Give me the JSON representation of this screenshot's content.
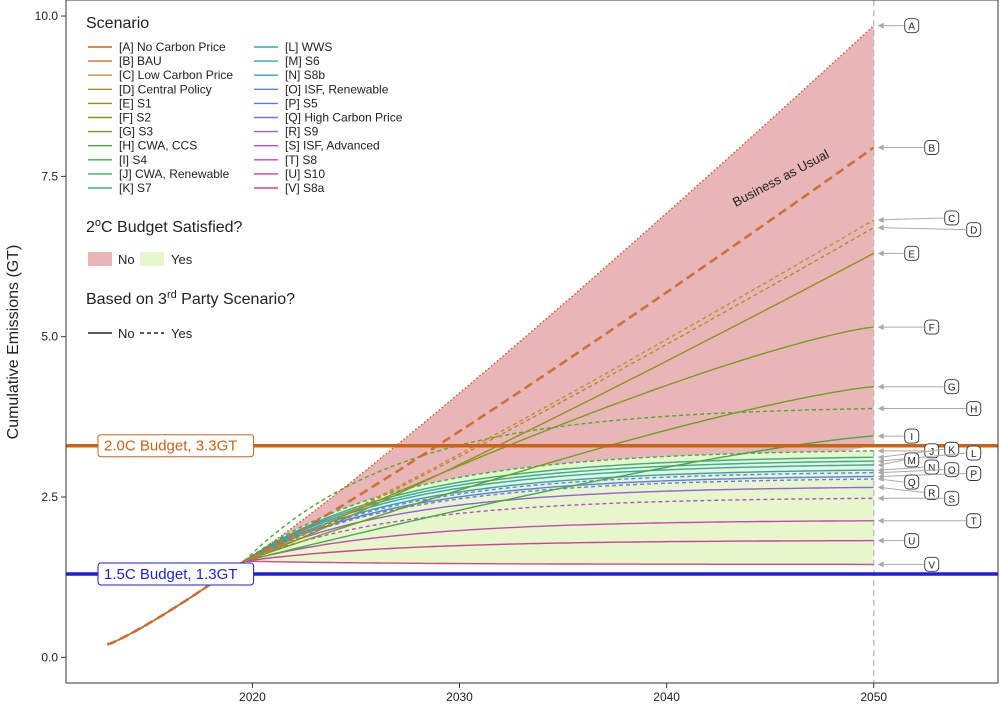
{
  "chart_data": {
    "type": "line",
    "ylabel": "Cumulative Emissions (GT)",
    "xlabel": "",
    "xlim": [
      2011,
      2056
    ],
    "ylim": [
      -0.4,
      10.25
    ],
    "x_ticks": [
      2020,
      2030,
      2040,
      2050
    ],
    "y_ticks": [
      0.0,
      2.5,
      5.0,
      7.5,
      10.0
    ],
    "y_tick_labels": [
      "0.0",
      "2.5",
      "5.0",
      "7.5",
      "10.0"
    ],
    "start": {
      "x": 2013,
      "y": 0.2
    },
    "converge": {
      "x": 2019.6,
      "y": 1.5
    },
    "vline_x": 2050,
    "budgets": [
      {
        "label": "2.0C Budget, 3.3GT",
        "y": 3.3,
        "color": "#c8641a"
      },
      {
        "label": "1.5C Budget, 1.3GT",
        "y": 1.3,
        "color": "#1f1fd6"
      }
    ],
    "bau_annotation": "Business as Usual",
    "fill_colors": {
      "no": "#e8b6b6",
      "yes": "#e6f7cc"
    },
    "series": [
      {
        "id": "A",
        "name": "[A] No Carbon Price",
        "end": 9.85,
        "color": "#c8602a",
        "dash": "dotted",
        "shape": "lin",
        "label_y": 9.85
      },
      {
        "id": "B",
        "name": "[B] BAU",
        "end": 7.95,
        "color": "#d06f3a",
        "dash": "bau",
        "shape": "lin",
        "label_y": 7.95
      },
      {
        "id": "C",
        "name": "[C] Low Carbon Price",
        "end": 6.82,
        "color": "#c98a3a",
        "dash": "dashed",
        "shape": "lin",
        "label_y": 6.82
      },
      {
        "id": "D",
        "name": "[D] Central Policy",
        "end": 6.7,
        "color": "#b68a2a",
        "dash": "dashed",
        "shape": "lin",
        "label_y": 6.7
      },
      {
        "id": "E",
        "name": "[E] S1",
        "end": 6.3,
        "color": "#94901e",
        "dash": "solid",
        "shape": "lin",
        "label_y": 6.3
      },
      {
        "id": "F",
        "name": "[F] S2",
        "end": 5.15,
        "color": "#7c9a1e",
        "dash": "solid",
        "shape": "mid",
        "label_y": 5.15
      },
      {
        "id": "G",
        "name": "[G] S3",
        "end": 4.22,
        "color": "#6f9f22",
        "dash": "solid",
        "shape": "mid",
        "label_y": 4.22
      },
      {
        "id": "H",
        "name": "[H] CWA, CCS",
        "end": 3.88,
        "color": "#55a62e",
        "dash": "dashed",
        "shape": "sat",
        "label_y": 3.88
      },
      {
        "id": "I",
        "name": "[I] S4",
        "end": 3.45,
        "color": "#45aa45",
        "dash": "solid",
        "shape": "mid",
        "label_y": 3.45
      },
      {
        "id": "J",
        "name": "[J] CWA, Renewable",
        "end": 3.22,
        "color": "#3aad62",
        "dash": "dashed",
        "shape": "sat",
        "label_y": 3.22
      },
      {
        "id": "K",
        "name": "[K] S7",
        "end": 3.12,
        "color": "#36ad86",
        "dash": "solid",
        "shape": "sat",
        "label_y": 3.12
      },
      {
        "id": "L",
        "name": "[L] WWS",
        "end": 3.06,
        "color": "#33aaa4",
        "dash": "solid",
        "shape": "sat",
        "label_y": 3.06
      },
      {
        "id": "M",
        "name": "[M] S6",
        "end": 3.0,
        "color": "#34a3bd",
        "dash": "solid",
        "shape": "sat",
        "label_y": 3.0
      },
      {
        "id": "N",
        "name": "[N] S8b",
        "end": 2.92,
        "color": "#3a98d2",
        "dash": "solid",
        "shape": "sat",
        "label_y": 2.92
      },
      {
        "id": "O",
        "name": "[O] ISF, Renewable",
        "end": 2.88,
        "color": "#4d8ae0",
        "dash": "dashed",
        "shape": "sat",
        "label_y": 2.88
      },
      {
        "id": "P",
        "name": "[P] S5",
        "end": 2.82,
        "color": "#5d7ae8",
        "dash": "solid",
        "shape": "sat",
        "label_y": 2.82
      },
      {
        "id": "Q",
        "name": "[Q] High Carbon Price",
        "end": 2.78,
        "color": "#7a6ee8",
        "dash": "dashed",
        "shape": "sat",
        "label_y": 2.78
      },
      {
        "id": "R",
        "name": "[R] S9",
        "end": 2.65,
        "color": "#9a5ce0",
        "dash": "solid",
        "shape": "sat",
        "label_y": 2.65
      },
      {
        "id": "S",
        "name": "[S] ISF, Advanced",
        "end": 2.48,
        "color": "#b54fd0",
        "dash": "dashed",
        "shape": "sat",
        "label_y": 2.48
      },
      {
        "id": "T",
        "name": "[T] S8",
        "end": 2.13,
        "color": "#c545b8",
        "dash": "solid",
        "shape": "sat",
        "label_y": 2.13
      },
      {
        "id": "U",
        "name": "[U] S10",
        "end": 1.82,
        "color": "#cd3f9e",
        "dash": "solid",
        "shape": "sat",
        "label_y": 1.82
      },
      {
        "id": "V",
        "name": "[V] S8a",
        "end": 1.45,
        "color": "#d44882",
        "dash": "solid",
        "shape": "sat",
        "label_y": 1.45
      }
    ]
  },
  "legend": {
    "scenario_title": "Scenario",
    "budget_title_pre": "2",
    "budget_title_sup": "o",
    "budget_title_post": "C Budget Satisfied?",
    "budget_no": "No",
    "budget_yes": "Yes",
    "party_title_pre": "Based on 3",
    "party_title_sup": "rd",
    "party_title_post": " Party Scenario?",
    "party_no": "No",
    "party_yes": "Yes"
  }
}
